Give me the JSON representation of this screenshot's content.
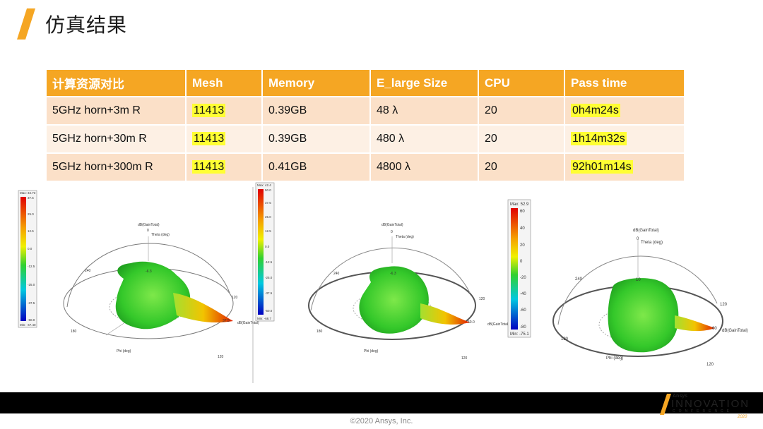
{
  "header": {
    "title": "仿真结果"
  },
  "colors": {
    "accent": "#f5a623",
    "highlight": "#ffff33",
    "footer": "#000000"
  },
  "table": {
    "columns": [
      "计算资源对比",
      "Mesh",
      "Memory",
      "E_large Size",
      "CPU",
      "Pass time"
    ],
    "rows": [
      {
        "name": "5GHz horn+3m R",
        "mesh": "11413",
        "memory": "0.39GB",
        "size": "48 λ",
        "cpu": "20",
        "time": "0h4m24s"
      },
      {
        "name": "5GHz horn+30m R",
        "mesh": "11413",
        "memory": "0.39GB",
        "size": "480 λ",
        "cpu": "20",
        "time": "1h14m32s"
      },
      {
        "name": "5GHz horn+300m R",
        "mesh": "11413",
        "memory": "0.41GB",
        "size": "4800 λ",
        "cpu": "20",
        "time": "92h01m14s"
      }
    ]
  },
  "plots": [
    {
      "legend": {
        "top": "Max: 34.73",
        "ticks": [
          "37.5",
          "25.0",
          "12.5",
          "0.0",
          "-12.5",
          "-25.0",
          "-37.5",
          "-50.0"
        ],
        "bottom": "Min: -47.40"
      },
      "labels": {
        "quantity": "dB(GainTotal)",
        "theta_zero": "0",
        "theta": "Theta (deg)",
        "phi": "Phi (deg)",
        "a240": "240",
        "a120": "120",
        "a120b": "120",
        "a180": "180",
        "peak": "37.5",
        "center": "-6.3"
      }
    },
    {
      "legend": {
        "top": "Max: 42.4",
        "ticks": [
          "50.0",
          "37.5",
          "25.0",
          "12.5",
          "0.0",
          "-12.5",
          "-25.0",
          "-37.5",
          "-50.0"
        ],
        "bottom": "Min: -68.7"
      },
      "labels": {
        "quantity": "dB(GainTotal)",
        "theta_zero": "0",
        "theta": "Theta (deg)",
        "phi": "Phi (deg)",
        "a240": "240",
        "a120": "120",
        "a120b": "120",
        "a180": "180",
        "peak": "50.0",
        "center": "-6.3"
      }
    },
    {
      "legend": {
        "top": "Max: 52.9",
        "ticks": [
          "60",
          "40",
          "20",
          "0",
          "-20",
          "-40",
          "-60",
          "-80"
        ],
        "bottom": "Min: -75.1"
      },
      "labels": {
        "quantity": "dB(GainTotal)",
        "theta_zero": "0",
        "theta": "Theta (deg)",
        "phi": "Phi (deg)",
        "a240": "240",
        "a120": "120",
        "a120b": "120",
        "a180": "120",
        "peak": "60",
        "center": "10"
      }
    }
  ],
  "footer": {
    "copyright": "©2020 Ansys, Inc.",
    "logo_brand": "Ansys",
    "logo_word": "INNOVATION",
    "logo_sub": "CONFERENCE",
    "logo_year": "2020"
  }
}
